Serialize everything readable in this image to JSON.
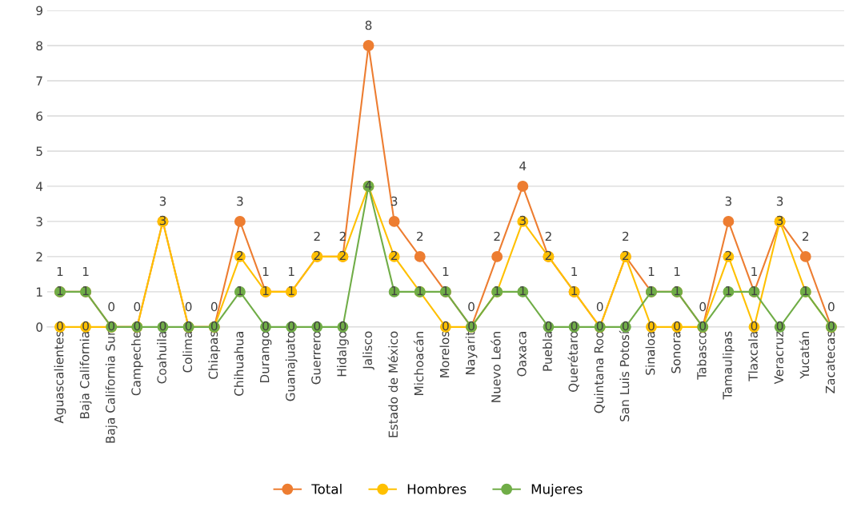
{
  "chart_data": {
    "type": "line",
    "categories": [
      "Aguascalientes",
      "Baja California",
      "Baja California Sur",
      "Campeche",
      "Coahuila",
      "Colima",
      "Chiapas",
      "Chihuahua",
      "Durango",
      "Guanajuato",
      "Guerrero",
      "Hidalgo",
      "Jalisco",
      "Estado de México",
      "Michoacán",
      "Morelos",
      "Nayarit",
      "Nuevo León",
      "Oaxaca",
      "Puebla",
      "Querétaro",
      "Quintana Roo",
      "San Luis Potosí",
      "Sinaloa",
      "Sonora",
      "Tabasco",
      "Tamaulipas",
      "Tlaxcala",
      "Veracruz",
      "Yucatán",
      "Zacatecas"
    ],
    "series": [
      {
        "name": "Total",
        "color": "#ed7d31",
        "values": [
          1,
          1,
          0,
          0,
          3,
          0,
          0,
          3,
          1,
          1,
          2,
          2,
          8,
          3,
          2,
          1,
          0,
          2,
          4,
          2,
          1,
          0,
          2,
          1,
          1,
          0,
          3,
          1,
          3,
          2,
          0
        ],
        "value_labels": [
          "1",
          "1",
          "0",
          "0",
          "3",
          "0",
          "0",
          "3",
          "1",
          "1",
          "2",
          "2",
          "8",
          "3",
          "2",
          "1",
          "0",
          "2",
          "4",
          "2",
          "1",
          "0",
          "2",
          "1",
          "1",
          "0",
          "3",
          "1",
          "3",
          "2",
          "0"
        ]
      },
      {
        "name": "Hombres",
        "color": "#ffc000",
        "values": [
          0,
          0,
          0,
          0,
          3,
          0,
          0,
          2,
          1,
          1,
          2,
          2,
          4,
          2,
          1,
          0,
          0,
          1,
          3,
          2,
          1,
          0,
          2,
          0,
          0,
          0,
          2,
          0,
          3,
          1,
          0
        ],
        "value_labels": [
          "0",
          "0",
          "0",
          "0",
          "3",
          "0",
          "0",
          "2",
          "1",
          "1",
          "2",
          "2",
          "4",
          "2",
          "1",
          "0",
          "0",
          "1",
          "3",
          "2",
          "1",
          "0",
          "2",
          "0",
          "0",
          "0",
          "2",
          "0",
          "3",
          "1",
          "0"
        ]
      },
      {
        "name": "Mujeres",
        "color": "#70ad47",
        "values": [
          1,
          1,
          0,
          0,
          0,
          0,
          0,
          1,
          0,
          0,
          0,
          0,
          4,
          1,
          1,
          1,
          0,
          1,
          1,
          0,
          0,
          0,
          0,
          1,
          1,
          0,
          1,
          1,
          0,
          1,
          0
        ],
        "value_labels": [
          "1",
          "1",
          null,
          null,
          "0",
          null,
          null,
          "1",
          "0",
          "0",
          "0",
          "0",
          null,
          "1",
          null,
          "1",
          null,
          null,
          "1",
          "0",
          "0",
          null,
          "0",
          "1",
          "1",
          null,
          "1",
          "1",
          "0",
          null,
          null
        ]
      }
    ],
    "ylim": [
      0,
      9
    ],
    "yticks": [
      0,
      1,
      2,
      3,
      4,
      5,
      6,
      7,
      8,
      9
    ],
    "grid": "y",
    "legend": "bottom",
    "marker": "circle",
    "line_style": "solid"
  }
}
